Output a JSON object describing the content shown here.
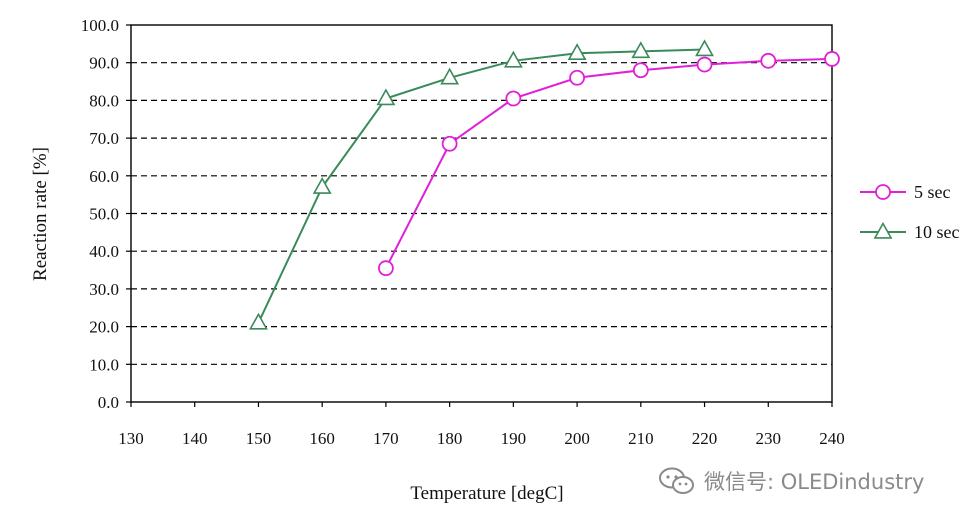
{
  "chart_data": {
    "type": "line",
    "xlabel": "Temperature [degC]",
    "ylabel": "Reaction rate [%]",
    "xlim": [
      130,
      240
    ],
    "ylim": [
      0,
      100
    ],
    "x_ticks": [
      130,
      140,
      150,
      160,
      170,
      180,
      190,
      200,
      210,
      220,
      230,
      240
    ],
    "y_ticks": [
      "0.0",
      "10.0",
      "20.0",
      "30.0",
      "40.0",
      "50.0",
      "60.0",
      "70.0",
      "80.0",
      "90.0",
      "100.0"
    ],
    "grid": "horizontal dashed",
    "legend_position": "right",
    "series": [
      {
        "name": "5 sec",
        "color": "#e020d8",
        "marker": "circle",
        "points": [
          [
            170,
            35.5
          ],
          [
            180,
            68.5
          ],
          [
            190,
            80.5
          ],
          [
            200,
            86
          ],
          [
            210,
            88
          ],
          [
            220,
            89.5
          ],
          [
            230,
            90.5
          ],
          [
            240,
            91
          ]
        ]
      },
      {
        "name": "10 sec",
        "color": "#3a8a5a",
        "marker": "triangle",
        "points": [
          [
            150,
            21
          ],
          [
            160,
            57
          ],
          [
            170,
            80.5
          ],
          [
            180,
            86
          ],
          [
            190,
            90.5
          ],
          [
            200,
            92.5
          ],
          [
            210,
            93
          ],
          [
            220,
            93.5
          ]
        ]
      }
    ]
  },
  "watermark": {
    "text": "微信号: OLEDindustry",
    "icon": "wechat-icon"
  }
}
